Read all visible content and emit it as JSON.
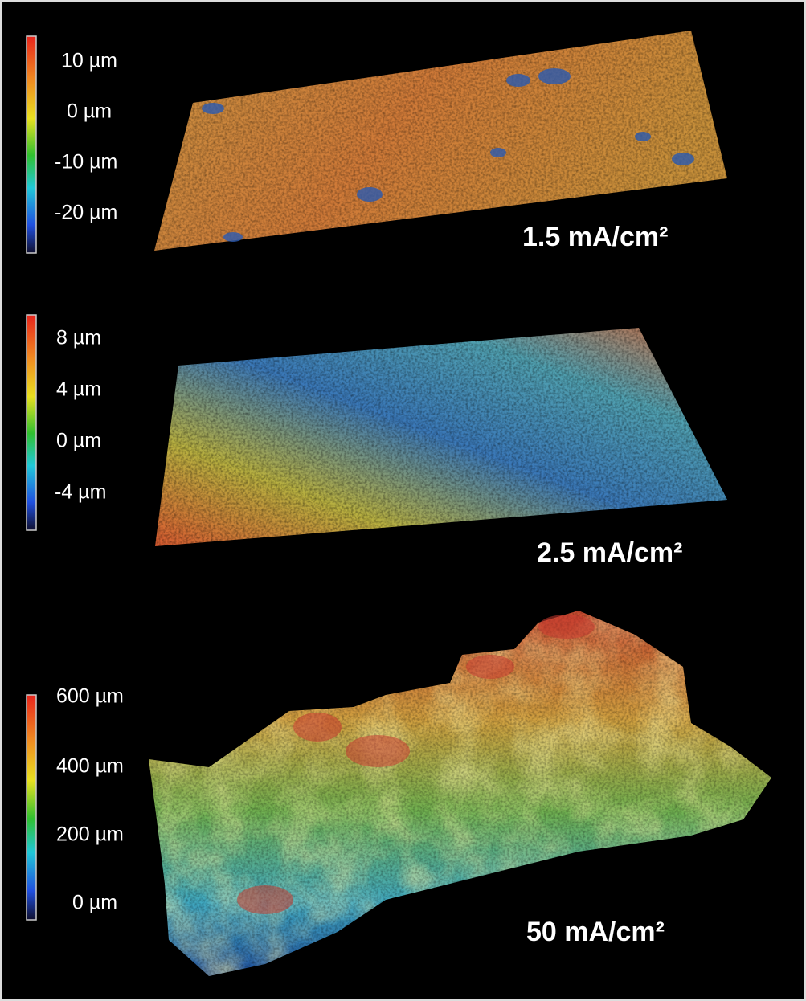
{
  "panels": [
    {
      "scale_labels": [
        "10 µm",
        "0 µm",
        "-10 µm",
        "-20 µm"
      ],
      "label": "1.5 mA/cm²"
    },
    {
      "scale_labels": [
        "8 µm",
        "4 µm",
        "0 µm",
        "-4 µm"
      ],
      "label": "2.5 mA/cm²"
    },
    {
      "scale_labels": [
        "600 µm",
        "400 µm",
        "200 µm",
        "0 µm"
      ],
      "label": "50 mA/cm²"
    }
  ]
}
